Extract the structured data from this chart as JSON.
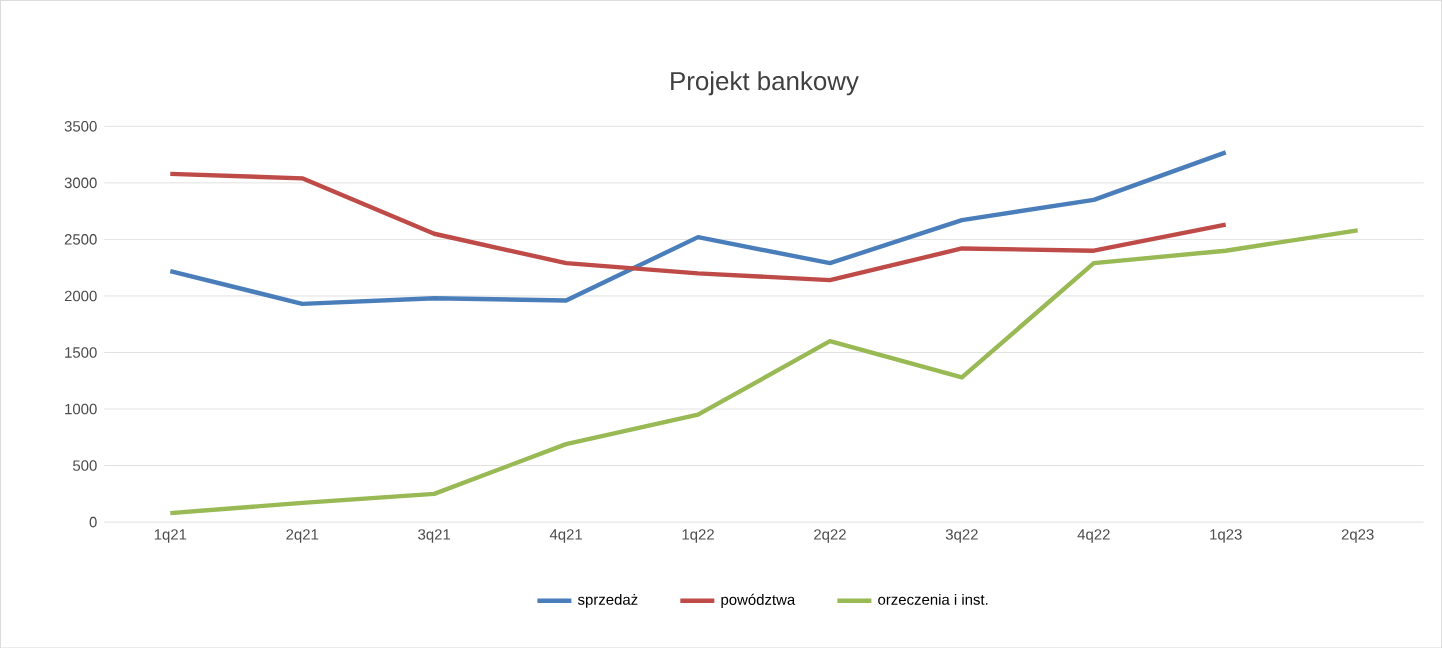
{
  "chart_data": {
    "type": "line",
    "title": "Projekt bankowy",
    "categories": [
      "1q21",
      "2q21",
      "3q21",
      "4q21",
      "1q22",
      "2q22",
      "3q22",
      "4q22",
      "1q23",
      "2q23"
    ],
    "series": [
      {
        "name": "sprzedaż",
        "color": "#4a7ebb",
        "values": [
          2220,
          1930,
          1980,
          1960,
          2520,
          2290,
          2670,
          2850,
          3270,
          null
        ]
      },
      {
        "name": "powództwa",
        "color": "#be4b48",
        "values": [
          3080,
          3040,
          2550,
          2290,
          2200,
          2140,
          2420,
          2400,
          2630,
          null
        ]
      },
      {
        "name": "orzeczenia i inst.",
        "color": "#98b954",
        "values": [
          80,
          170,
          250,
          690,
          950,
          1600,
          1280,
          2290,
          2400,
          2580
        ]
      }
    ],
    "ylim": [
      0,
      3500
    ],
    "yticks": [
      0,
      500,
      1000,
      1500,
      2000,
      2500,
      3000,
      3500
    ],
    "grid": "y",
    "legend": "bottom",
    "marker": "none",
    "line_style": "solid"
  }
}
